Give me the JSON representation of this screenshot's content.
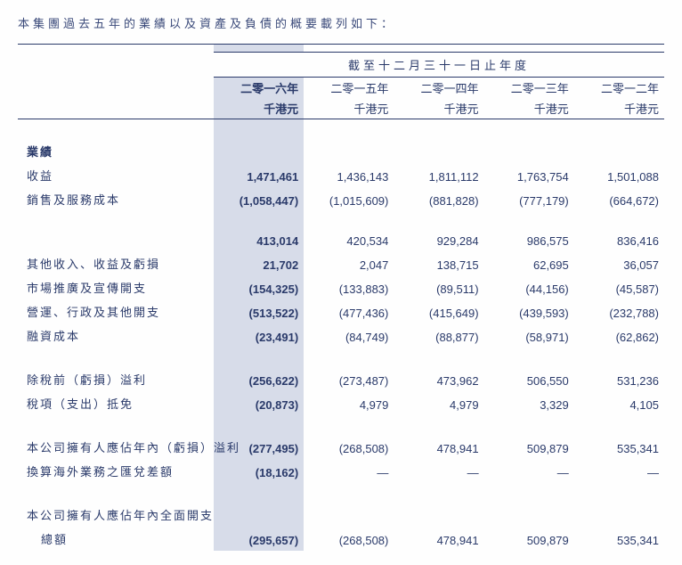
{
  "caption": "本集團過去五年的業績以及資產及負債的概要載列如下：",
  "period_header": "截至十二月三十一日止年度",
  "columns": [
    {
      "year": "二零一六年",
      "unit": "千港元",
      "highlight": true
    },
    {
      "year": "二零一五年",
      "unit": "千港元",
      "highlight": false
    },
    {
      "year": "二零一四年",
      "unit": "千港元",
      "highlight": false
    },
    {
      "year": "二零一三年",
      "unit": "千港元",
      "highlight": false
    },
    {
      "year": "二零一二年",
      "unit": "千港元",
      "highlight": false
    }
  ],
  "sections": {
    "results_heading": "業績",
    "revenue": {
      "label": "收益",
      "v": [
        "1,471,461",
        "1,436,143",
        "1,811,112",
        "1,763,754",
        "1,501,088"
      ]
    },
    "cogs": {
      "label": "銷售及服務成本",
      "v": [
        "(1,058,447)",
        "(1,015,609)",
        "(881,828)",
        "(777,179)",
        "(664,672)"
      ]
    },
    "gross": {
      "label": "",
      "v": [
        "413,014",
        "420,534",
        "929,284",
        "986,575",
        "836,416"
      ]
    },
    "other_income": {
      "label": "其他收入、收益及虧損",
      "v": [
        "21,702",
        "2,047",
        "138,715",
        "62,695",
        "36,057"
      ]
    },
    "marketing": {
      "label": "市場推廣及宣傳開支",
      "v": [
        "(154,325)",
        "(133,883)",
        "(89,511)",
        "(44,156)",
        "(45,587)"
      ]
    },
    "admin": {
      "label": "營運、行政及其他開支",
      "v": [
        "(513,522)",
        "(477,436)",
        "(415,649)",
        "(439,593)",
        "(232,788)"
      ]
    },
    "finance": {
      "label": "融資成本",
      "v": [
        "(23,491)",
        "(84,749)",
        "(88,877)",
        "(58,971)",
        "(62,862)"
      ]
    },
    "pbt": {
      "label": "除稅前（虧損）溢利",
      "v": [
        "(256,622)",
        "(273,487)",
        "473,962",
        "506,550",
        "531,236"
      ]
    },
    "tax": {
      "label": "稅項（支出）抵免",
      "v": [
        "(20,873)",
        "4,979",
        "4,979",
        "3,329",
        "4,105"
      ]
    },
    "attrib": {
      "label": "本公司擁有人應佔年內（虧損）溢利",
      "v": [
        "(277,495)",
        "(268,508)",
        "478,941",
        "509,879",
        "535,341"
      ]
    },
    "fx": {
      "label": "換算海外業務之匯兌差額",
      "v": [
        "(18,162)",
        "—",
        "—",
        "—",
        "—"
      ]
    },
    "tci_label1": "本公司擁有人應佔年內全面開支",
    "tci_label2": "總額",
    "tci_v": [
      "(295,657)",
      "(268,508)",
      "478,941",
      "509,879",
      "535,341"
    ]
  },
  "style": {
    "text_color": "#2a3a6a",
    "highlight_bg": "#d7dce9",
    "border_color": "#2a3a6a"
  }
}
